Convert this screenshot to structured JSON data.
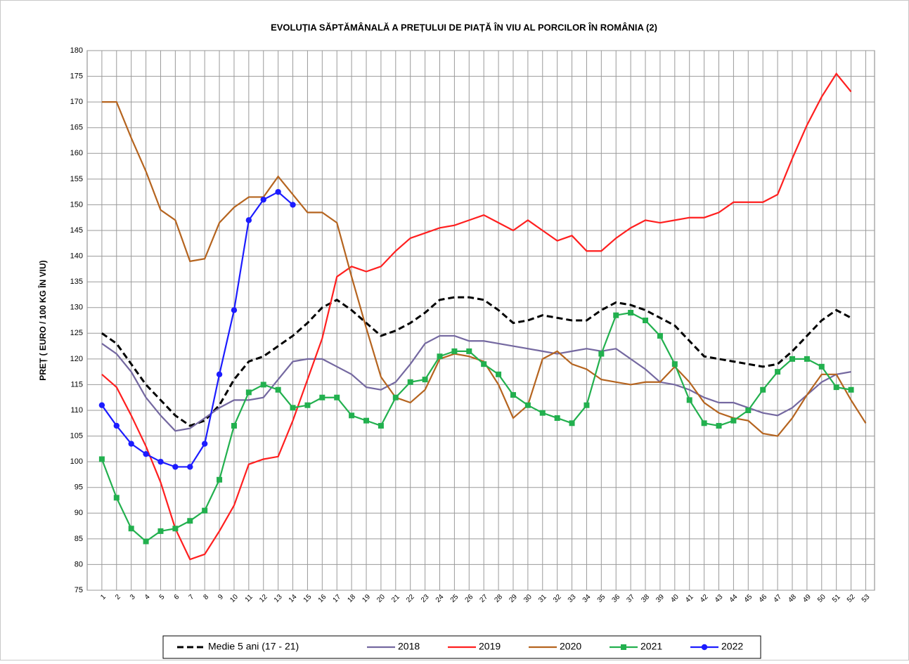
{
  "chart_data": {
    "type": "line",
    "title": "EVOLUȚIA SĂPTĂMÂNALĂ A PREȚULUI  DE PIAȚĂ ÎN VIU AL PORCILOR ÎN ROMÂNIA (2)",
    "y_label": "PREȚ ( EURO / 100 KG ÎN VIU)",
    "x": [
      1,
      2,
      3,
      4,
      5,
      6,
      7,
      8,
      9,
      10,
      11,
      12,
      13,
      14,
      15,
      16,
      17,
      18,
      19,
      20,
      21,
      22,
      23,
      24,
      25,
      26,
      27,
      28,
      29,
      30,
      31,
      32,
      33,
      34,
      35,
      36,
      37,
      38,
      39,
      40,
      41,
      42,
      43,
      44,
      45,
      46,
      47,
      48,
      49,
      50,
      51,
      52,
      53
    ],
    "xlim": [
      0,
      53.6
    ],
    "xticks": [
      1,
      2,
      3,
      4,
      5,
      6,
      7,
      8,
      9,
      10,
      11,
      12,
      13,
      14,
      15,
      16,
      17,
      18,
      19,
      20,
      21,
      22,
      23,
      24,
      25,
      26,
      27,
      28,
      29,
      30,
      31,
      32,
      33,
      34,
      35,
      36,
      37,
      38,
      39,
      40,
      41,
      42,
      43,
      44,
      45,
      46,
      47,
      48,
      49,
      50,
      51,
      52,
      53
    ],
    "ylim": [
      75,
      180
    ],
    "yticks": [
      75,
      80,
      85,
      90,
      95,
      100,
      105,
      110,
      115,
      120,
      125,
      130,
      135,
      140,
      145,
      150,
      155,
      160,
      165,
      170,
      175,
      180
    ],
    "grid": true,
    "legend": "bottom",
    "series": [
      {
        "name": "Medie 5 ani (17 - 21)",
        "color": "#000000",
        "dashed": true,
        "marker": "none",
        "values": [
          125,
          123,
          119,
          115,
          112,
          109,
          107,
          108,
          111,
          116,
          119.5,
          120.5,
          122.5,
          124.5,
          127,
          130,
          131.5,
          129.5,
          127,
          124.5,
          125.5,
          127,
          129,
          131.5,
          132,
          132,
          131.5,
          129.5,
          127,
          127.5,
          128.5,
          128,
          127.5,
          127.5,
          129.5,
          131,
          130.5,
          129.5,
          128,
          126.5,
          123.5,
          120.5,
          120,
          119.5,
          119,
          118.5,
          119,
          121.5,
          124.5,
          127.5,
          129.5,
          128,
          null
        ]
      },
      {
        "name": "2018",
        "color": "#7468a0",
        "dashed": false,
        "marker": "none",
        "values": [
          123,
          121,
          117.5,
          112.5,
          109,
          106,
          106.5,
          108.5,
          110.5,
          112,
          112,
          112.5,
          116,
          119.5,
          120,
          120,
          118.5,
          117,
          114.5,
          114,
          115.5,
          119,
          123,
          124.5,
          124.5,
          123.5,
          123.5,
          123,
          122.5,
          122,
          121.5,
          121,
          121.5,
          122,
          121.5,
          122,
          120,
          118,
          115.5,
          115,
          114,
          112.5,
          111.5,
          111.5,
          110.5,
          109.5,
          109,
          110.5,
          113,
          115.5,
          117,
          117.5,
          null
        ]
      },
      {
        "name": "2019",
        "color": "#ff1f1f",
        "dashed": false,
        "marker": "none",
        "values": [
          117,
          114.5,
          109,
          103,
          96,
          87,
          81,
          82,
          86.5,
          91.5,
          99.5,
          100.5,
          101,
          108,
          116,
          124,
          136,
          138,
          137,
          138,
          141,
          143.5,
          144.5,
          145.5,
          146,
          147,
          148,
          146.5,
          145,
          147,
          145,
          143,
          144,
          141,
          141,
          143.5,
          145.5,
          147,
          146.5,
          147,
          147.5,
          147.5,
          148.5,
          150.5,
          150.5,
          150.5,
          152,
          159,
          165.5,
          171,
          175.5,
          172,
          null
        ]
      },
      {
        "name": "2020",
        "color": "#b5641f",
        "dashed": false,
        "marker": "none",
        "values": [
          170,
          170,
          163,
          156.5,
          149,
          147,
          139,
          139.5,
          146.5,
          149.5,
          151.5,
          151.5,
          155.5,
          152,
          148.5,
          148.5,
          146.5,
          136,
          126,
          116.5,
          112.5,
          111.5,
          114,
          120,
          121,
          120.5,
          119.5,
          115,
          108.5,
          111,
          120,
          121.5,
          119,
          118,
          116,
          115.5,
          115,
          115.5,
          115.5,
          118.5,
          115.5,
          111.5,
          109.5,
          108.5,
          108,
          105.5,
          105,
          108.5,
          113,
          117,
          117,
          112,
          107.5
        ]
      },
      {
        "name": "2021",
        "color": "#22b04e",
        "dashed": false,
        "marker": "square",
        "values": [
          100.5,
          93,
          87,
          84.5,
          86.5,
          87,
          88.5,
          90.5,
          96.5,
          107,
          113.5,
          115,
          114,
          110.5,
          111,
          112.5,
          112.5,
          109,
          108,
          107,
          112.5,
          115.5,
          116,
          120.5,
          121.5,
          121.5,
          119,
          117,
          113,
          111,
          109.5,
          108.5,
          107.5,
          111,
          121,
          128.5,
          129,
          127.5,
          124.5,
          119,
          112,
          107.5,
          107,
          108,
          110,
          114,
          117.5,
          120,
          120,
          118.5,
          114.5,
          114,
          null
        ]
      },
      {
        "name": "2022",
        "color": "#1c1cff",
        "dashed": false,
        "marker": "circle",
        "values": [
          111,
          107,
          103.5,
          101.5,
          100,
          99,
          99,
          103.5,
          117,
          129.5,
          147,
          151,
          152.5,
          150,
          null,
          null,
          null,
          null,
          null,
          null,
          null,
          null,
          null,
          null,
          null,
          null,
          null,
          null,
          null,
          null,
          null,
          null,
          null,
          null,
          null,
          null,
          null,
          null,
          null,
          null,
          null,
          null,
          null,
          null,
          null,
          null,
          null,
          null,
          null,
          null,
          null,
          null,
          null
        ]
      }
    ]
  }
}
